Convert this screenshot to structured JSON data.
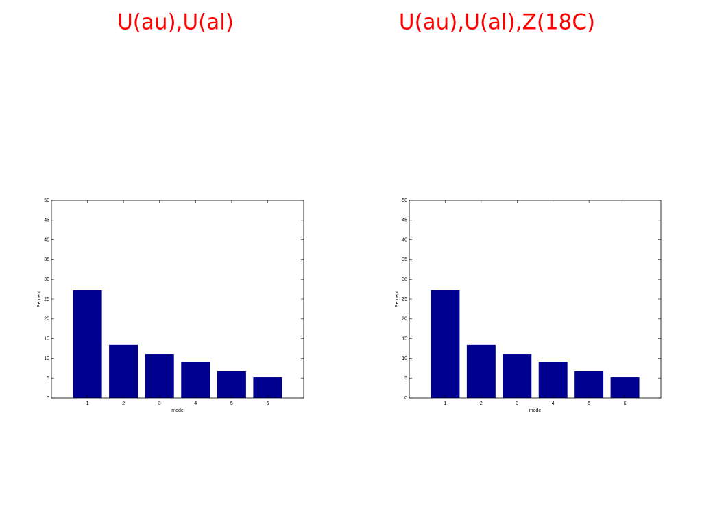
{
  "chart_data": [
    {
      "type": "bar",
      "title": "U(au),U(al)",
      "title_color": "#ff0000",
      "xlabel": "mode",
      "ylabel": "Percent",
      "x": [
        1,
        2,
        3,
        4,
        5,
        6
      ],
      "values": [
        27.3,
        13.4,
        11.1,
        9.2,
        6.8,
        5.2
      ],
      "color": "#00008f",
      "xlim": [
        0,
        7
      ],
      "xticks": [
        1,
        2,
        3,
        4,
        5,
        6
      ],
      "ylim": [
        0,
        50
      ],
      "yticks": [
        0,
        5,
        10,
        15,
        20,
        25,
        30,
        35,
        40,
        45,
        50
      ]
    },
    {
      "type": "bar",
      "title": "U(au),U(al),Z(18C)",
      "title_color": "#ff0000",
      "xlabel": "mode",
      "ylabel": "Percent",
      "x": [
        1,
        2,
        3,
        4,
        5,
        6
      ],
      "values": [
        27.3,
        13.4,
        11.1,
        9.2,
        6.8,
        5.2
      ],
      "color": "#00008f",
      "xlim": [
        0,
        7
      ],
      "xticks": [
        1,
        2,
        3,
        4,
        5,
        6
      ],
      "ylim": [
        0,
        50
      ],
      "yticks": [
        0,
        5,
        10,
        15,
        20,
        25,
        30,
        35,
        40,
        45,
        50
      ]
    }
  ]
}
